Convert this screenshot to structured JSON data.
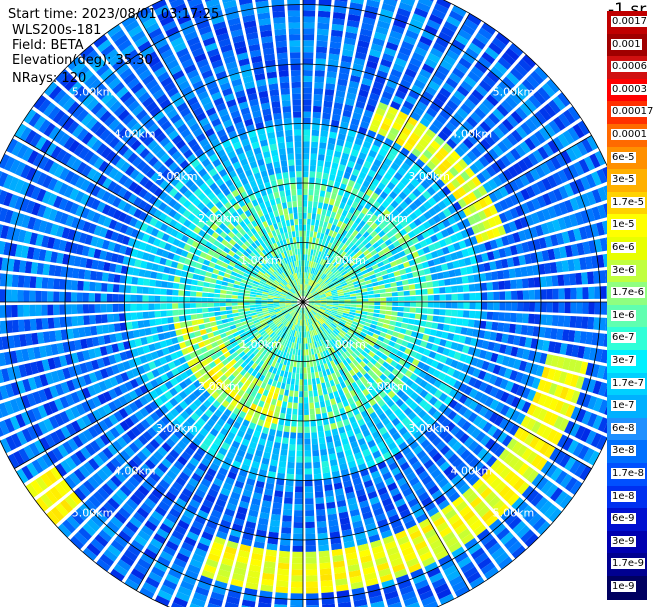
{
  "info": {
    "start_time": "Start time: 2023/08/01 03:17:25",
    "instrument": "WLS200s-181",
    "field": "Field: BETA",
    "elevation": "Elevation(deg): 35.30",
    "nrays": "NRays: 120"
  },
  "colorbar": {
    "unit": "-1 sr",
    "labels": [
      "0.0017",
      "0.001",
      "0.0006",
      "0.0003",
      "0.00017",
      "0.0001",
      "6e-5",
      "3e-5",
      "1.7e-5",
      "1e-5",
      "6e-6",
      "3e-6",
      "1.7e-6",
      "1e-6",
      "6e-7",
      "3e-7",
      "1.7e-7",
      "1e-7",
      "6e-8",
      "3e-8",
      "1.7e-8",
      "1e-8",
      "6e-9",
      "3e-9",
      "1.7e-9",
      "1e-9"
    ],
    "colors": [
      "#c00000",
      "#a00000",
      "#d01010",
      "#ff0000",
      "#ff3000",
      "#ff6a00",
      "#ff9000",
      "#ffb000",
      "#ffd200",
      "#ffff00",
      "#e8ff00",
      "#c0ff40",
      "#90ff80",
      "#60ffb0",
      "#30ffd8",
      "#00f0ff",
      "#00d0ff",
      "#00b0ff",
      "#2090ff",
      "#0070ff",
      "#0050ff",
      "#0030f0",
      "#0010d0",
      "#0000b0",
      "#000090",
      "#000060"
    ]
  },
  "chart_data": {
    "type": "heatmap",
    "projection": "polar",
    "field": "BETA",
    "elevation_deg": 35.3,
    "n_rays": 120,
    "range_rings_km": [
      1,
      2,
      3,
      4,
      5
    ],
    "ring_labels": [
      "1.00km",
      "2.00km",
      "3.00km",
      "4.00km",
      "5.00km"
    ],
    "spokes_deg": [
      0,
      30,
      60,
      90,
      120,
      150,
      180,
      210,
      240,
      270,
      300,
      330
    ]
  }
}
